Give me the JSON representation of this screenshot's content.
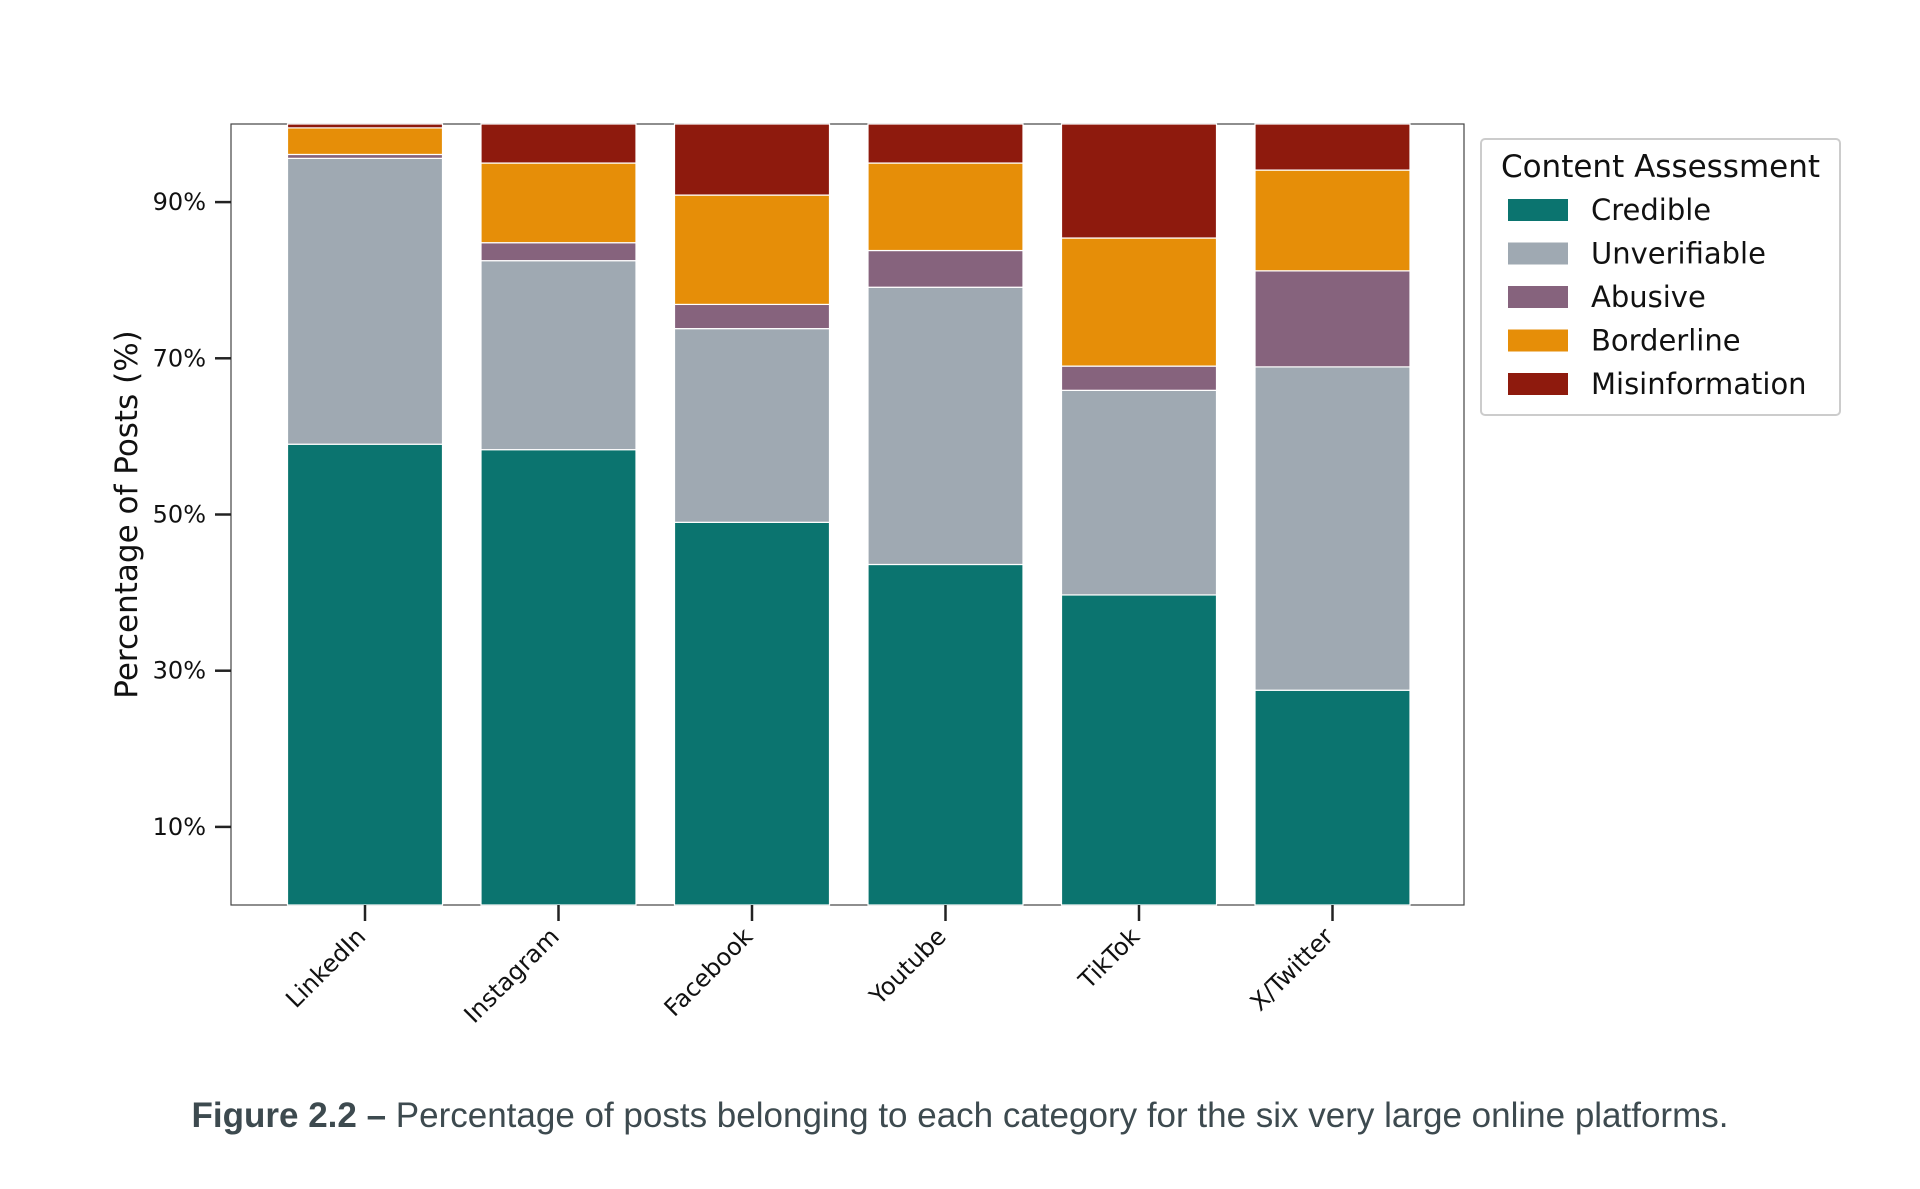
{
  "chart_data": {
    "type": "bar",
    "stacked": true,
    "categories": [
      "LinkedIn",
      "Instagram",
      "Facebook",
      "Youtube",
      "TikTok",
      "X/Twitter"
    ],
    "series": [
      {
        "name": "Credible",
        "color": "#0b746f",
        "values": [
          59.0,
          58.3,
          49.0,
          43.6,
          39.7,
          27.5
        ]
      },
      {
        "name": "Unverifiable",
        "color": "#9fa9b2",
        "values": [
          36.6,
          24.2,
          24.8,
          35.5,
          26.2,
          41.4
        ]
      },
      {
        "name": "Abusive",
        "color": "#86637d",
        "values": [
          0.5,
          2.3,
          3.1,
          4.7,
          3.1,
          12.3
        ]
      },
      {
        "name": "Borderline",
        "color": "#e68e08",
        "values": [
          3.4,
          10.2,
          14.0,
          11.2,
          16.4,
          12.9
        ]
      },
      {
        "name": "Misinformation",
        "color": "#8e1a0d",
        "values": [
          0.5,
          5.0,
          9.1,
          5.0,
          14.6,
          5.9
        ]
      }
    ],
    "title": "",
    "xlabel": "",
    "ylabel": "Percentage of Posts (%)",
    "ylim": [
      0,
      100
    ],
    "yticks": [
      10,
      30,
      50,
      70,
      90
    ],
    "ytick_labels": [
      "10%",
      "30%",
      "50%",
      "70%",
      "90%"
    ],
    "legend_title": "Content Assessment",
    "legend_position": "outside-top-right"
  },
  "caption": {
    "lead": "Figure 2.2 –",
    "text": " Percentage of posts belonging to each category for the six very large online platforms."
  }
}
